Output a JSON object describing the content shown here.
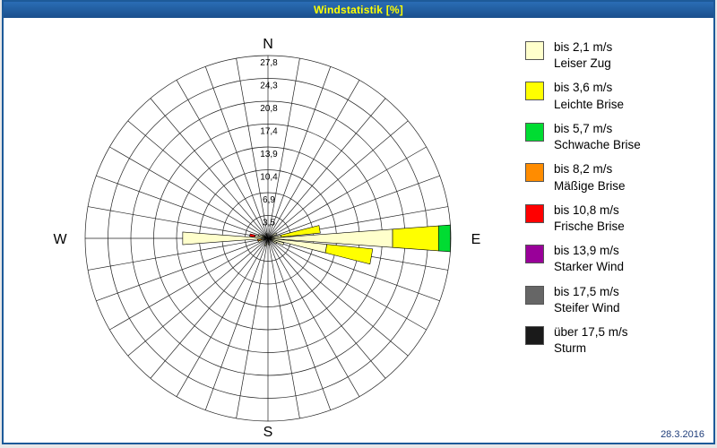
{
  "window": {
    "title": "Windstatistik [%]",
    "date": "28.3.2016"
  },
  "compass": {
    "north": "N",
    "south": "S",
    "east": "E",
    "west": "W"
  },
  "chart_data": {
    "type": "windrose",
    "unit": "%",
    "title": "Windstatistik [%]",
    "ring_max": 27.8,
    "ring_count": 8,
    "ring_labels": [
      "3,5",
      "6,9",
      "10,4",
      "13,9",
      "17,4",
      "20,8",
      "24,3",
      "27,8"
    ],
    "sector_count": 36,
    "sector_step_deg": 10,
    "grid": true,
    "legend_position": "right",
    "speed_classes": [
      {
        "label": "bis 2,1 m/s",
        "name": "Leiser Zug",
        "color": "#FFFFCC"
      },
      {
        "label": "bis 3,6 m/s",
        "name": "Leichte Brise",
        "color": "#FFFF00"
      },
      {
        "label": "bis 5,7 m/s",
        "name": "Schwache Brise",
        "color": "#00DC32"
      },
      {
        "label": "bis 8,2 m/s",
        "name": "Mäßige Brise",
        "color": "#FF8C00"
      },
      {
        "label": "bis 10,8 m/s",
        "name": "Frische Brise",
        "color": "#FF0000"
      },
      {
        "label": "bis 13,9 m/s",
        "name": "Starker Wind",
        "color": "#990099"
      },
      {
        "label": "bis 17,5 m/s",
        "name": "Steifer Wind",
        "color": "#666666"
      },
      {
        "label": "über 17,5 m/s",
        "name": "Sturm",
        "color": "#1A1A1A"
      }
    ],
    "petals": [
      {
        "dir": 60,
        "values": [
          1.5,
          0,
          0,
          0,
          0,
          0,
          0,
          0
        ]
      },
      {
        "dir": 80,
        "values": [
          2,
          6,
          0,
          0,
          0,
          0,
          0,
          0
        ]
      },
      {
        "dir": 90,
        "values": [
          19,
          7,
          1.8,
          0,
          0,
          0,
          0,
          0
        ]
      },
      {
        "dir": 100,
        "values": [
          9,
          7,
          0,
          0,
          0,
          0,
          0,
          0
        ]
      },
      {
        "dir": 110,
        "values": [
          2.5,
          0,
          0,
          0,
          0,
          0,
          0,
          0
        ]
      },
      {
        "dir": 120,
        "values": [
          1.5,
          0,
          0,
          0,
          0,
          0,
          0,
          0
        ]
      },
      {
        "dir": 170,
        "values": [
          1,
          0,
          0,
          0,
          0,
          0,
          0,
          0
        ]
      },
      {
        "dir": 200,
        "values": [
          1.2,
          0,
          0,
          0,
          0,
          0,
          0,
          0
        ]
      },
      {
        "dir": 250,
        "values": [
          1.5,
          0,
          0,
          0,
          0,
          0,
          0,
          0
        ]
      },
      {
        "dir": 260,
        "values": [
          1,
          0,
          0,
          0.6,
          0,
          0,
          0,
          0
        ]
      },
      {
        "dir": 270,
        "values": [
          13,
          0,
          0,
          0,
          0,
          0,
          0,
          0
        ]
      },
      {
        "dir": 280,
        "values": [
          2,
          0,
          0,
          0,
          0.8,
          0,
          0,
          0
        ]
      },
      {
        "dir": 290,
        "values": [
          1.5,
          0,
          0,
          0,
          0,
          0,
          0,
          0
        ]
      },
      {
        "dir": 300,
        "values": [
          1,
          0,
          0,
          0,
          0,
          0,
          0,
          0
        ]
      },
      {
        "dir": 340,
        "values": [
          0.8,
          0,
          0,
          0,
          0,
          0,
          0,
          0
        ]
      }
    ]
  }
}
